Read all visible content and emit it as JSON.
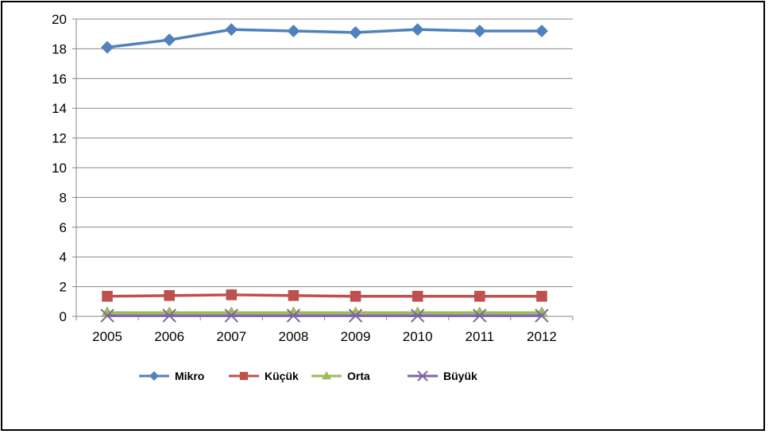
{
  "chart_data": {
    "type": "line",
    "title": "",
    "xlabel": "",
    "ylabel": "",
    "x": [
      "2005",
      "2006",
      "2007",
      "2008",
      "2009",
      "2010",
      "2011",
      "2012"
    ],
    "ylim": [
      0,
      20
    ],
    "yticks": [
      "0",
      "2",
      "4",
      "6",
      "8",
      "10",
      "12",
      "14",
      "16",
      "18",
      "20"
    ],
    "grid": true,
    "legend": "bottom",
    "series": [
      {
        "name": "Mikro",
        "values": [
          18.1,
          18.6,
          19.3,
          19.2,
          19.1,
          19.3,
          19.2,
          19.2
        ],
        "color": "#4f81bd",
        "marker": "diamond"
      },
      {
        "name": "Küçük",
        "values": [
          1.35,
          1.4,
          1.45,
          1.4,
          1.35,
          1.35,
          1.35,
          1.35
        ],
        "color": "#c0504d",
        "marker": "square"
      },
      {
        "name": "Orta",
        "values": [
          0.25,
          0.25,
          0.25,
          0.25,
          0.25,
          0.25,
          0.25,
          0.25
        ],
        "color": "#9bbb59",
        "marker": "triangle"
      },
      {
        "name": "Büyük",
        "values": [
          0.05,
          0.05,
          0.05,
          0.05,
          0.05,
          0.05,
          0.05,
          0.05
        ],
        "color": "#8064a2",
        "marker": "x"
      }
    ]
  }
}
